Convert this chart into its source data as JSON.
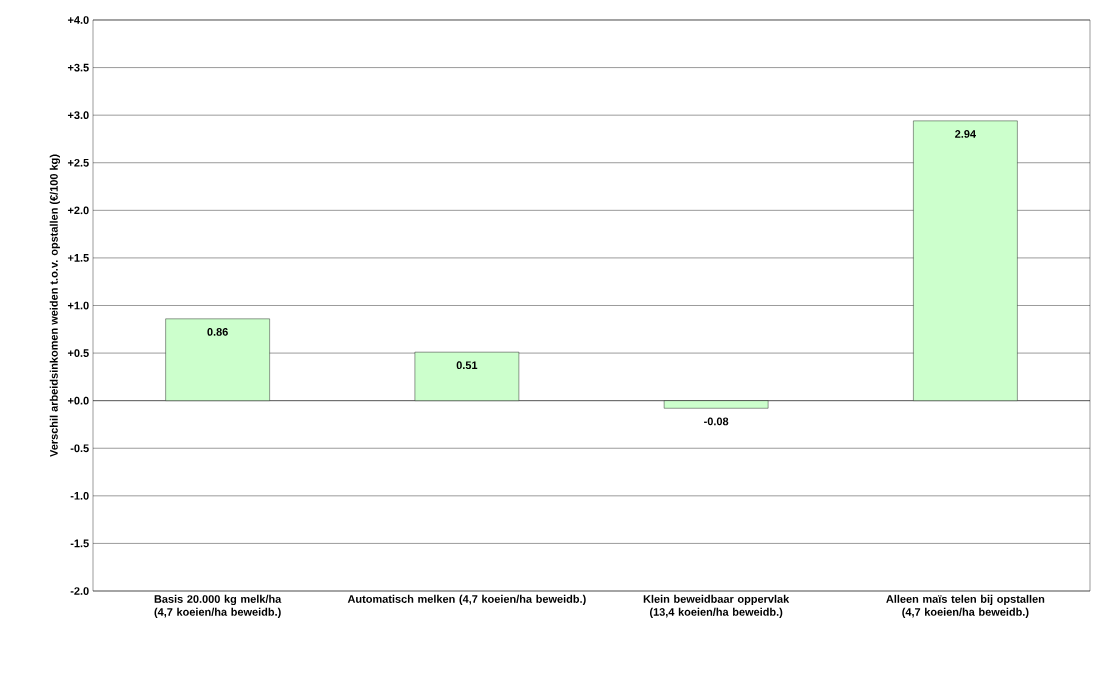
{
  "chart_data": {
    "type": "bar",
    "ylabel": "Verschil arbeidsinkomen weiden t.o.v. opstallen (€/100 kg)",
    "categories": [
      "Basis 20.000 kg melk/ha (4,7 koeien/ha beweidb.)",
      "Automatisch melken (4,7 koeien/ha beweidb.)",
      "Klein beweidbaar oppervlak (13,4 koeien/ha beweidb.)",
      "Alleen maïs telen bij opstallen (4,7 koeien/ha beweidb.)"
    ],
    "values": [
      0.86,
      0.51,
      -0.08,
      2.94
    ],
    "value_labels": [
      "0.86",
      "0.51",
      "-0.08",
      "2.94"
    ],
    "color": "#ccffcc",
    "ylim": [
      -2.0,
      4.0
    ],
    "yticks": [
      {
        "value": -2.0,
        "label": "-2.0"
      },
      {
        "value": -1.5,
        "label": "-1.5"
      },
      {
        "value": -1.0,
        "label": "-1.0"
      },
      {
        "value": -0.5,
        "label": "-0.5"
      },
      {
        "value": 0.0,
        "label": "+0.0"
      },
      {
        "value": 0.5,
        "label": "+0.5"
      },
      {
        "value": 1.0,
        "label": "+1.0"
      },
      {
        "value": 1.5,
        "label": "+1.5"
      },
      {
        "value": 2.0,
        "label": "+2.0"
      },
      {
        "value": 2.5,
        "label": "+2.5"
      },
      {
        "value": 3.0,
        "label": "+3.0"
      },
      {
        "value": 3.5,
        "label": "+3.5"
      },
      {
        "value": 4.0,
        "label": "+4.0"
      }
    ],
    "grid": "y"
  }
}
